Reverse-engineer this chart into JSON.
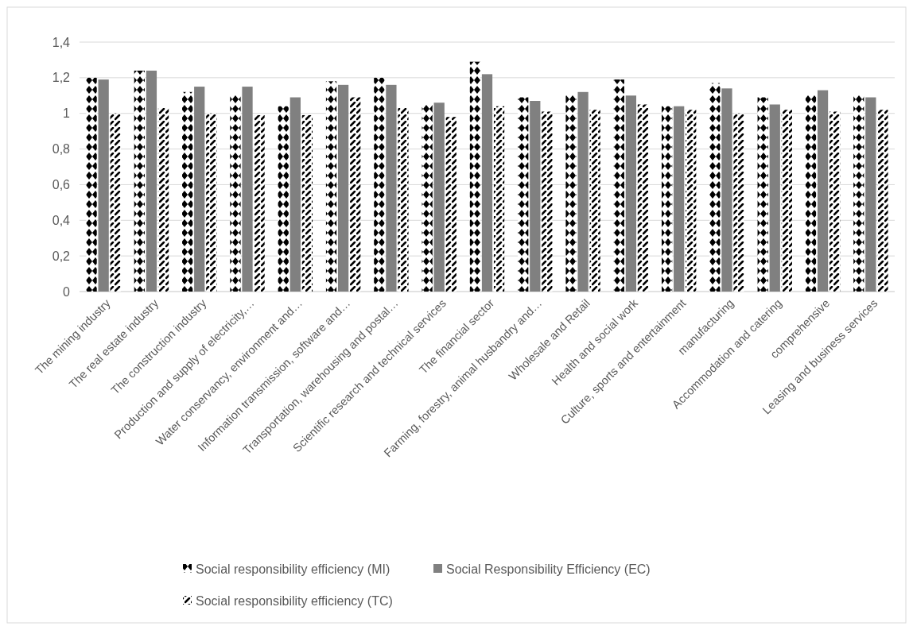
{
  "chart_data": {
    "type": "bar",
    "categories": [
      "The mining industry",
      "The real estate industry",
      "The construction industry",
      "Production and supply of electricity,…",
      "Water conservancy, environment and…",
      "Information transmission, software and…",
      "Transportation, warehousing and postal…",
      "Scientific research and technical services",
      "The financial sector",
      "Farming, forestry, animal husbandry and…",
      "Wholesale and Retail",
      "Health and social work",
      "Culture, sports and entertainment",
      "manufacturing",
      "Accommodation and catering",
      "comprehensive",
      "Leasing and business services"
    ],
    "series": [
      {
        "name": "Social responsibility efficiency (MI)",
        "color": "#000000",
        "values": [
          1.2,
          1.24,
          1.12,
          1.11,
          1.04,
          1.18,
          1.2,
          1.05,
          1.29,
          1.09,
          1.11,
          1.19,
          1.04,
          1.17,
          1.09,
          1.11,
          1.11
        ]
      },
      {
        "name": "Social Responsibility Efficiency (EC)",
        "color": "#808080",
        "values": [
          1.19,
          1.24,
          1.15,
          1.15,
          1.09,
          1.16,
          1.16,
          1.06,
          1.22,
          1.07,
          1.12,
          1.1,
          1.04,
          1.14,
          1.05,
          1.13,
          1.09
        ]
      },
      {
        "name": "Social responsibility efficiency (TC)",
        "color": "#000000",
        "values": [
          1.0,
          1.03,
          1.0,
          0.99,
          0.99,
          1.09,
          1.03,
          0.98,
          1.04,
          1.01,
          1.02,
          1.05,
          1.02,
          1.0,
          1.02,
          1.01,
          1.02
        ]
      }
    ],
    "ylim": [
      0,
      1.4
    ],
    "yticks": [
      0,
      {
        "value": 0.2,
        "label": "0,2"
      },
      {
        "value": 0.4,
        "label": "0,4"
      },
      {
        "value": 0.6,
        "label": "0,6"
      },
      {
        "value": 0.8,
        "label": "0,8"
      },
      1,
      {
        "value": 1.2,
        "label": "1,2"
      },
      {
        "value": 1.4,
        "label": "1,4"
      }
    ],
    "grid": "y",
    "legend": "bottom"
  }
}
